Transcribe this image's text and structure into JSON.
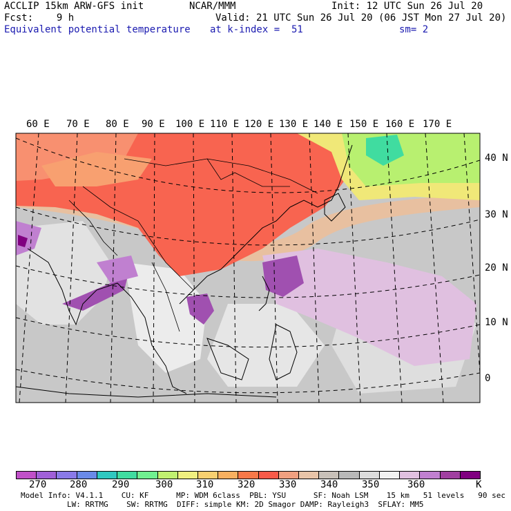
{
  "header": {
    "line1_left": "ACCLIP 15km ARW-GFS init",
    "line1_center": "NCAR/MMM",
    "line1_right": "Init: 12 UTC Sun 26 Jul 20",
    "line2_left": "Fcst:    9 h",
    "line2_right": "Valid: 21 UTC Sun 26 Jul 20 (06 JST Mon 27 Jul 20)",
    "line3_left": "Equivalent potential temperature",
    "line3_center": "at k-index =  51",
    "line3_right": "sm= 2"
  },
  "map": {
    "lon_labels": [
      "60 E",
      "70 E",
      "80 E",
      "90 E",
      "100 E",
      "110 E",
      "120 E",
      "130 E",
      "140 E",
      "150 E",
      "160 E",
      "170 E"
    ],
    "lat_labels": [
      "40 N",
      "30 N",
      "20 N",
      "10 N",
      "0"
    ]
  },
  "colorbar": {
    "colors": [
      "#c050c8",
      "#a060d8",
      "#8a7ae8",
      "#6a8ae8",
      "#30c8c0",
      "#40dca0",
      "#70f090",
      "#c0f070",
      "#f0f080",
      "#f8d070",
      "#f8b060",
      "#f87848",
      "#f85a48",
      "#f0a080",
      "#e8c4a8",
      "#c8c0b8",
      "#b8b8b8",
      "#dcdcdc",
      "#f2f2f2",
      "#e0c0e0",
      "#c080d0",
      "#a040a0",
      "#800080"
    ],
    "tick_labels": [
      "270",
      "280",
      "290",
      "300",
      "310",
      "320",
      "330",
      "340",
      "350",
      "360"
    ],
    "unit": "K"
  },
  "footer": {
    "line1": "Model Info: V4.1.1    CU: KF      MP: WDM 6class  PBL: YSU      SF: Noah LSM    15 km   51 levels   90 sec",
    "line2": "LW: RRTMG    SW: RRTMG  DIFF: simple KM: 2D Smagor DAMP: Rayleigh3  SFLAY: MM5"
  }
}
